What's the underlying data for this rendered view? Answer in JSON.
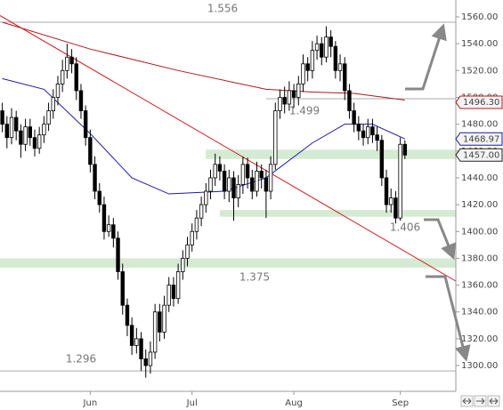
{
  "chart_data": {
    "type": "candlestick",
    "categories": [
      null,
      null,
      null,
      null,
      null,
      null,
      null,
      null,
      null,
      null,
      null,
      null,
      null,
      null,
      null,
      null,
      null,
      null,
      null,
      "Jun",
      null,
      null,
      null,
      null,
      null,
      null,
      null,
      null,
      null,
      null,
      null,
      null,
      null,
      null,
      null,
      null,
      null,
      null,
      null,
      null,
      null,
      "Jul",
      null,
      null,
      null,
      null,
      null,
      null,
      null,
      null,
      null,
      null,
      null,
      null,
      null,
      null,
      null,
      null,
      null,
      null,
      null,
      null,
      null,
      "Aug",
      null,
      null,
      null,
      null,
      null,
      null,
      null,
      null,
      null,
      null,
      null,
      null,
      null,
      null,
      null,
      null,
      null,
      null,
      null,
      null,
      null,
      null,
      "Sep",
      null
    ],
    "open": [
      1490,
      1480,
      1470,
      1485,
      1475,
      1465,
      1478,
      1470,
      1462,
      1472,
      1480,
      1490,
      1500,
      1510,
      1520,
      1530,
      1525,
      1505,
      1490,
      1470,
      1450,
      1430,
      1420,
      1400,
      1405,
      1395,
      1370,
      1345,
      1330,
      1315,
      1320,
      1305,
      1300,
      1310,
      1340,
      1325,
      1345,
      1360,
      1350,
      1370,
      1380,
      1390,
      1400,
      1410,
      1420,
      1430,
      1440,
      1450,
      1445,
      1430,
      1440,
      1425,
      1435,
      1450,
      1440,
      1430,
      1445,
      1440,
      1430,
      1450,
      1490,
      1500,
      1495,
      1505,
      1500,
      1510,
      1525,
      1520,
      1535,
      1540,
      1530,
      1545,
      1538,
      1520,
      1525,
      1505,
      1490,
      1480,
      1475,
      1470,
      1478,
      1472,
      1468,
      1440,
      1420,
      1425,
      1410,
      1465
    ],
    "high": [
      1496,
      1486,
      1492,
      1490,
      1480,
      1484,
      1484,
      1476,
      1478,
      1486,
      1496,
      1506,
      1516,
      1528,
      1540,
      1536,
      1530,
      1510,
      1494,
      1476,
      1456,
      1436,
      1426,
      1412,
      1410,
      1400,
      1376,
      1350,
      1336,
      1328,
      1325,
      1312,
      1318,
      1346,
      1346,
      1352,
      1366,
      1366,
      1376,
      1386,
      1396,
      1406,
      1416,
      1426,
      1436,
      1446,
      1458,
      1456,
      1450,
      1446,
      1445,
      1442,
      1456,
      1455,
      1446,
      1452,
      1450,
      1446,
      1456,
      1496,
      1506,
      1508,
      1512,
      1510,
      1516,
      1532,
      1530,
      1542,
      1546,
      1545,
      1553,
      1550,
      1542,
      1532,
      1530,
      1510,
      1496,
      1486,
      1480,
      1484,
      1484,
      1478,
      1472,
      1446,
      1432,
      1430,
      1470,
      1468
    ],
    "low": [
      1474,
      1462,
      1465,
      1468,
      1455,
      1460,
      1464,
      1456,
      1458,
      1466,
      1475,
      1484,
      1494,
      1504,
      1514,
      1518,
      1498,
      1484,
      1464,
      1444,
      1424,
      1414,
      1394,
      1396,
      1388,
      1364,
      1338,
      1322,
      1308,
      1309,
      1296,
      1291,
      1294,
      1305,
      1318,
      1320,
      1340,
      1344,
      1346,
      1364,
      1374,
      1385,
      1394,
      1404,
      1414,
      1424,
      1434,
      1438,
      1424,
      1422,
      1408,
      1418,
      1428,
      1432,
      1424,
      1426,
      1432,
      1410,
      1424,
      1446,
      1484,
      1488,
      1490,
      1492,
      1494,
      1504,
      1512,
      1514,
      1528,
      1524,
      1526,
      1530,
      1514,
      1512,
      1498,
      1484,
      1474,
      1468,
      1464,
      1465,
      1466,
      1460,
      1434,
      1414,
      1414,
      1406,
      1408,
      1454
    ],
    "close": [
      1480,
      1470,
      1485,
      1475,
      1465,
      1478,
      1470,
      1462,
      1472,
      1480,
      1490,
      1500,
      1510,
      1520,
      1530,
      1525,
      1505,
      1490,
      1470,
      1450,
      1430,
      1420,
      1400,
      1405,
      1395,
      1370,
      1345,
      1330,
      1315,
      1320,
      1305,
      1300,
      1310,
      1340,
      1325,
      1345,
      1360,
      1350,
      1370,
      1380,
      1390,
      1400,
      1410,
      1420,
      1430,
      1440,
      1450,
      1445,
      1430,
      1440,
      1425,
      1435,
      1450,
      1440,
      1430,
      1445,
      1440,
      1430,
      1450,
      1490,
      1500,
      1495,
      1505,
      1500,
      1510,
      1525,
      1520,
      1535,
      1540,
      1530,
      1545,
      1538,
      1520,
      1525,
      1505,
      1490,
      1480,
      1475,
      1470,
      1478,
      1472,
      1468,
      1440,
      1420,
      1425,
      1410,
      1465,
      1457
    ],
    "up_color": "#ffffff",
    "down_color": "#000000",
    "overlays": [
      {
        "color": "#1a1aa6",
        "x": [
          0,
          9,
          19,
          28,
          36,
          48,
          57,
          67,
          74,
          80,
          87
        ],
        "values": [
          1514,
          1506,
          1473,
          1440,
          1428,
          1430,
          1440,
          1466,
          1480,
          1480,
          1469
        ]
      },
      {
        "color": "#b01818",
        "x": [
          0,
          19,
          38,
          57,
          67,
          76,
          87
        ],
        "values": [
          1556,
          1536,
          1520,
          1506,
          1504,
          1503,
          1498
        ]
      },
      {
        "color": "#d02020",
        "x": [
          -0.5,
          98
        ],
        "values": [
          1561,
          1363
        ]
      }
    ],
    "zones": [
      {
        "from": 1454,
        "to": 1461,
        "start": 44
      },
      {
        "from": 1411,
        "to": 1416,
        "start": 47
      },
      {
        "from": 1373,
        "to": 1380,
        "start": -0.5
      }
    ],
    "zone_color": "#d5ead2",
    "levels": [
      {
        "value": 1556,
        "label": "1.556",
        "line": true
      },
      {
        "value": 1499,
        "label": "1.499",
        "line": true
      },
      {
        "value": 1406,
        "label": "1.406",
        "line": false
      },
      {
        "value": 1375,
        "label": "1.375",
        "line": false
      },
      {
        "value": 1296,
        "label": "1.296",
        "line": true
      }
    ],
    "price_tags": [
      {
        "value": 1496.3,
        "label": "1496.30",
        "color": "#b01818"
      },
      {
        "value": 1468.97,
        "label": "1468.97",
        "color": "#1a1aa6"
      },
      {
        "value": 1457,
        "label": "1457.00",
        "color": "#222222"
      }
    ],
    "xlim": [
      -0.5,
      98
    ],
    "ylim": [
      1280.8,
      1572.6
    ],
    "yticks": [
      {
        "value": 1300,
        "label": "1300.00"
      },
      {
        "value": 1320,
        "label": "1320.00"
      },
      {
        "value": 1340,
        "label": "1340.00"
      },
      {
        "value": 1360,
        "label": "1360.00"
      },
      {
        "value": 1380,
        "label": "1380.00"
      },
      {
        "value": 1400,
        "label": "1400.00"
      },
      {
        "value": 1420,
        "label": "1420.00"
      },
      {
        "value": 1440,
        "label": "1440.00"
      },
      {
        "value": 1460,
        "label": "1460.00"
      },
      {
        "value": 1480,
        "label": "1480.00"
      },
      {
        "value": 1500,
        "label": "1500.00"
      },
      {
        "value": 1520,
        "label": "1520.00"
      },
      {
        "value": 1540,
        "label": "1540.00"
      },
      {
        "value": 1560,
        "label": "1560.00"
      }
    ]
  }
}
